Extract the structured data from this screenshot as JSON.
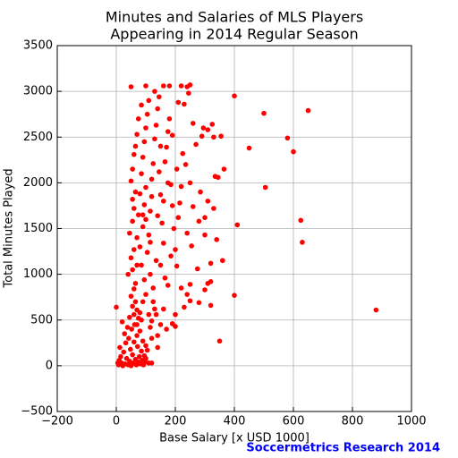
{
  "chart_data": {
    "type": "scatter",
    "title": [
      "Minutes and Salaries of MLS Players",
      "Appearing in 2014 Regular Season"
    ],
    "x_label": "Base Salary [x USD 1000]",
    "y_label": "Total Minutes Played",
    "annotation": "Soccermetrics Research 2014",
    "color": "#ff0000",
    "grid": true,
    "xlim": [
      -200,
      1000
    ],
    "ylim": [
      -500,
      3500
    ],
    "xticks": [
      {
        "value": -200,
        "label": "−200"
      },
      0,
      200,
      400,
      600,
      800,
      1000
    ],
    "yticks": [
      {
        "value": -500,
        "label": "−500"
      },
      0,
      500,
      1000,
      1500,
      2000,
      2500,
      3000,
      3500
    ],
    "x": [
      880,
      650,
      630,
      625,
      600,
      580,
      505,
      500,
      450,
      410,
      400,
      400,
      350,
      360,
      365,
      355,
      345,
      335,
      330,
      325,
      320,
      320,
      310,
      300,
      290,
      280,
      260,
      250,
      245,
      240,
      220,
      180,
      160,
      100,
      50,
      0,
      5,
      8,
      10,
      12,
      15,
      18,
      20,
      22,
      25,
      28,
      30,
      32,
      35,
      38,
      40,
      42,
      45,
      48,
      50,
      52,
      55,
      58,
      60,
      62,
      65,
      68,
      70,
      72,
      75,
      78,
      80,
      82,
      85,
      88,
      90,
      92,
      95,
      98,
      100,
      110,
      105,
      60,
      55,
      65,
      70,
      45,
      50,
      60,
      75,
      80,
      90,
      100,
      110,
      120,
      130,
      140,
      150,
      120,
      115,
      125,
      135,
      160,
      200,
      190,
      230,
      240,
      250,
      220,
      280,
      300,
      310,
      320,
      40,
      50,
      55,
      60,
      65,
      70,
      45,
      55,
      60,
      65,
      50,
      55,
      60,
      65,
      70,
      55,
      75,
      80,
      85,
      90,
      95,
      100,
      105,
      110,
      80,
      85,
      90,
      95,
      100,
      105,
      110,
      115,
      120,
      125,
      130,
      135,
      140,
      145,
      150,
      155,
      160,
      165,
      170,
      175,
      180,
      185,
      190,
      195,
      200,
      205,
      210,
      215,
      220,
      225,
      230,
      235,
      240,
      250,
      255,
      260,
      270,
      275,
      285,
      295,
      300,
      310,
      330,
      340,
      150,
      165,
      175,
      185,
      135,
      125,
      115,
      95,
      70,
      75,
      85,
      130,
      150,
      190,
      210,
      115,
      140,
      100,
      160,
      175,
      120,
      145,
      90,
      205,
      250,
      200,
      170,
      140,
      100,
      120,
      85,
      70
    ],
    "values": [
      610,
      2790,
      1350,
      1590,
      2340,
      2490,
      1950,
      2760,
      2380,
      1540,
      2950,
      770,
      270,
      1150,
      2150,
      2510,
      2060,
      2070,
      2500,
      2640,
      1120,
      920,
      2580,
      1620,
      2510,
      1580,
      2650,
      3070,
      2980,
      3050,
      3060,
      3060,
      3060,
      3060,
      3050,
      640,
      30,
      10,
      60,
      200,
      100,
      30,
      480,
      0,
      150,
      350,
      20,
      250,
      80,
      420,
      10,
      300,
      50,
      180,
      0,
      400,
      120,
      30,
      260,
      450,
      70,
      10,
      330,
      210,
      40,
      100,
      380,
      20,
      160,
      60,
      270,
      10,
      110,
      40,
      220,
      30,
      170,
      560,
      650,
      700,
      610,
      530,
      760,
      840,
      520,
      580,
      700,
      780,
      560,
      490,
      620,
      330,
      450,
      300,
      420,
      700,
      560,
      620,
      430,
      460,
      640,
      780,
      710,
      850,
      690,
      830,
      900,
      660,
      1000,
      1180,
      1050,
      1270,
      900,
      1400,
      1450,
      1580,
      1720,
      1900,
      2020,
      2150,
      2310,
      2400,
      2530,
      1820,
      1650,
      1880,
      2100,
      2280,
      2450,
      2600,
      2750,
      2900,
      1300,
      1100,
      1520,
      1760,
      1950,
      1240,
      1430,
      1690,
      2040,
      2210,
      2480,
      2630,
      2810,
      2940,
      1870,
      1560,
      1340,
      2230,
      2390,
      2560,
      2700,
      1980,
      1750,
      1500,
      1270,
      1090,
      1620,
      1780,
      1960,
      2320,
      2860,
      2200,
      1450,
      2000,
      1310,
      1740,
      2420,
      1060,
      1900,
      2600,
      1430,
      1800,
      1720,
      1380,
      1100,
      960,
      880,
      1200,
      1150,
      850,
      1000,
      940,
      1100,
      2700,
      2850,
      3000,
      2400,
      2520,
      2880,
      1350,
      1640,
      1600,
      1800,
      2000,
      1850,
      2120,
      1650,
      2150,
      890,
      560,
      400,
      200,
      80,
      30,
      500,
      450
    ]
  }
}
